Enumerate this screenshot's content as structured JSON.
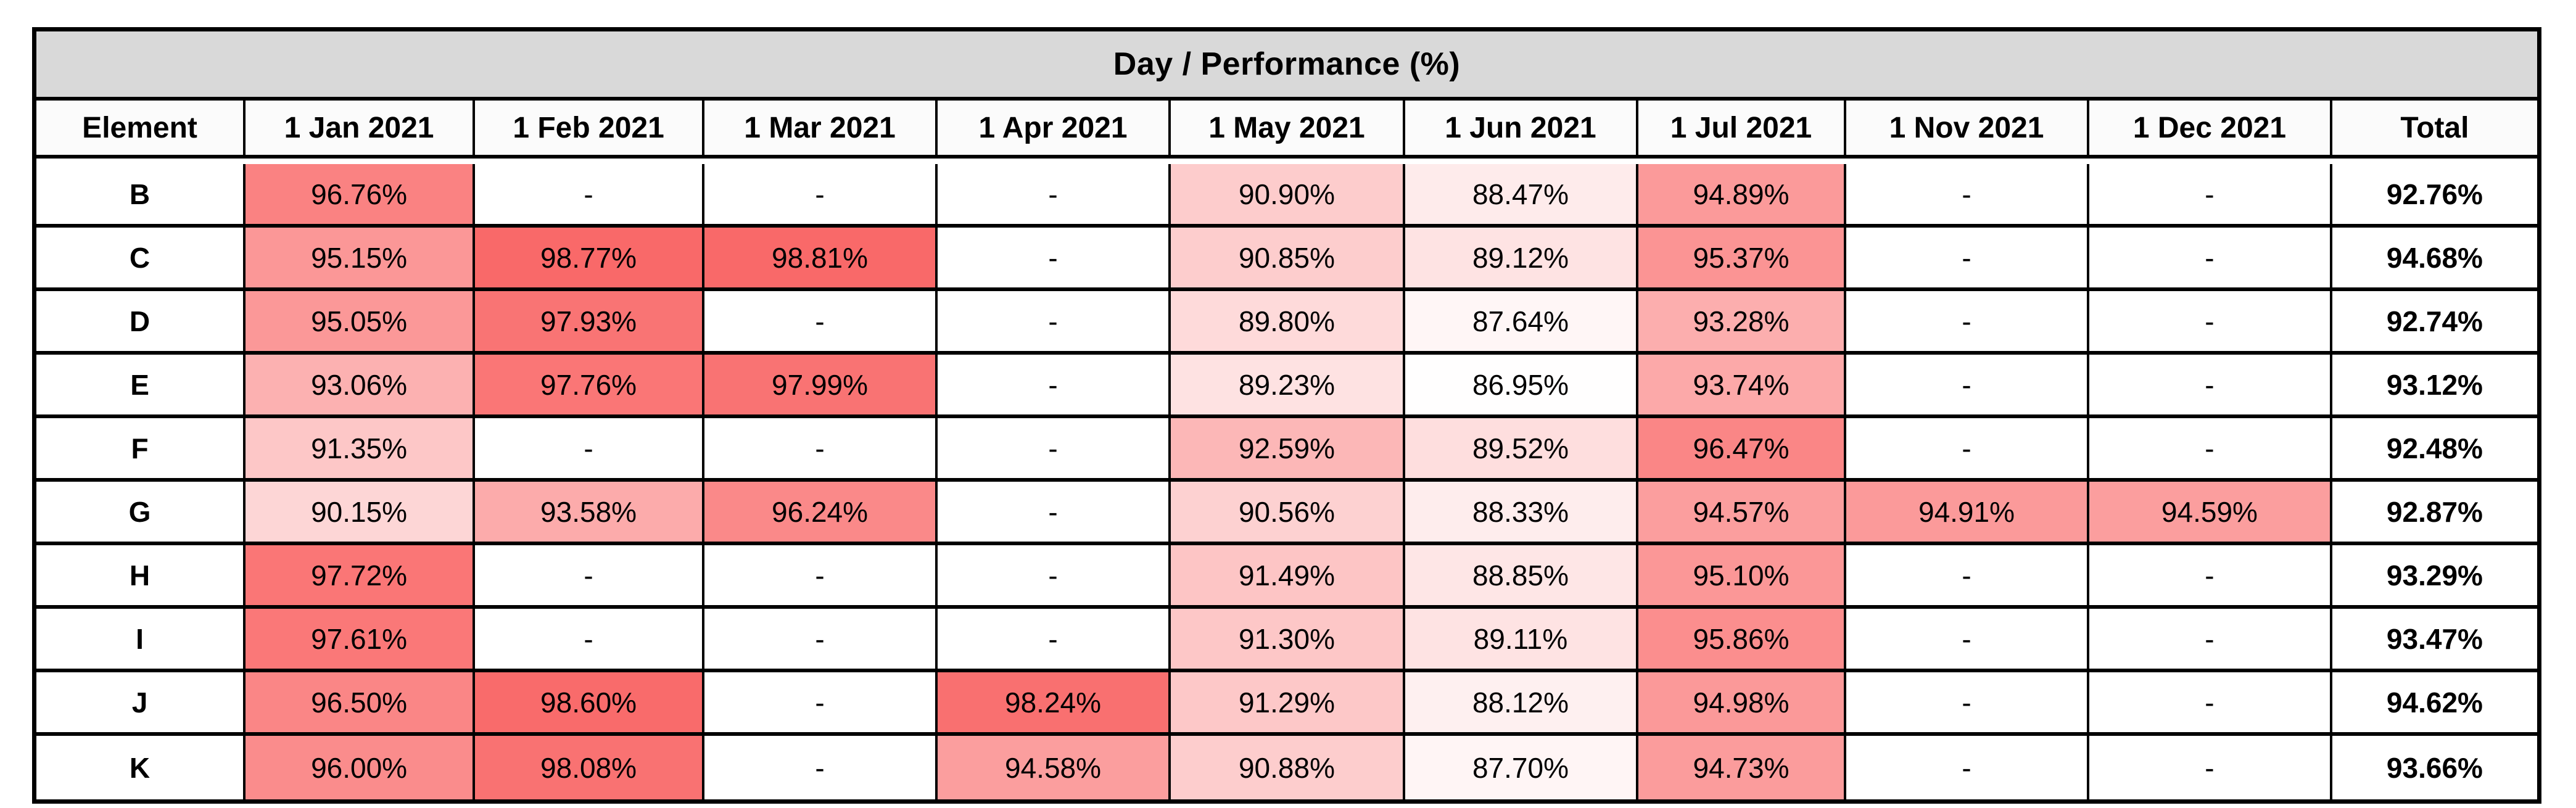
{
  "title": "Day / Performance (%)",
  "chart_data": {
    "type": "table",
    "title": "Day / Performance (%)",
    "columns": [
      "Element",
      "1 Jan 2021",
      "1 Feb 2021",
      "1 Mar 2021",
      "1 Apr 2021",
      "1 May 2021",
      "1 Jun 2021",
      "1 Jul 2021",
      "1 Nov 2021",
      "1 Dec 2021",
      "Total"
    ],
    "rows": [
      {
        "element": "B",
        "cells": [
          "96.76%",
          "-",
          "-",
          "-",
          "90.90%",
          "88.47%",
          "94.89%",
          "-",
          "-"
        ],
        "total": "92.76%"
      },
      {
        "element": "C",
        "cells": [
          "95.15%",
          "98.77%",
          "98.81%",
          "-",
          "90.85%",
          "89.12%",
          "95.37%",
          "-",
          "-"
        ],
        "total": "94.68%"
      },
      {
        "element": "D",
        "cells": [
          "95.05%",
          "97.93%",
          "-",
          "-",
          "89.80%",
          "87.64%",
          "93.28%",
          "-",
          "-"
        ],
        "total": "92.74%"
      },
      {
        "element": "E",
        "cells": [
          "93.06%",
          "97.76%",
          "97.99%",
          "-",
          "89.23%",
          "86.95%",
          "93.74%",
          "-",
          "-"
        ],
        "total": "93.12%"
      },
      {
        "element": "F",
        "cells": [
          "91.35%",
          "-",
          "-",
          "-",
          "92.59%",
          "89.52%",
          "96.47%",
          "-",
          "-"
        ],
        "total": "92.48%"
      },
      {
        "element": "G",
        "cells": [
          "90.15%",
          "93.58%",
          "96.24%",
          "-",
          "90.56%",
          "88.33%",
          "94.57%",
          "94.91%",
          "94.59%"
        ],
        "total": "92.87%"
      },
      {
        "element": "H",
        "cells": [
          "97.72%",
          "-",
          "-",
          "-",
          "91.49%",
          "88.85%",
          "95.10%",
          "-",
          "-"
        ],
        "total": "93.29%"
      },
      {
        "element": "I",
        "cells": [
          "97.61%",
          "-",
          "-",
          "-",
          "91.30%",
          "89.11%",
          "95.86%",
          "-",
          "-"
        ],
        "total": "93.47%"
      },
      {
        "element": "J",
        "cells": [
          "96.50%",
          "98.60%",
          "-",
          "98.24%",
          "91.29%",
          "88.12%",
          "94.98%",
          "-",
          "-"
        ],
        "total": "94.62%"
      },
      {
        "element": "K",
        "cells": [
          "96.00%",
          "98.08%",
          "-",
          "94.58%",
          "90.88%",
          "87.70%",
          "94.73%",
          "-",
          "-"
        ],
        "total": "93.66%"
      }
    ],
    "heatmap": {
      "applies_to": "date columns only",
      "min_value": 86.9,
      "max_value": 98.85,
      "min_color": "#FFFFFF",
      "max_color": "#F96868"
    },
    "layout_hints": {
      "grid": "on",
      "title_position": "top merged row",
      "value_range": [
        86.95,
        98.81
      ]
    }
  },
  "colors": {
    "title_bg": "#D9D9D9",
    "header_bg": "#FBFBFB",
    "grid_border": "#000000",
    "text": "#000000"
  }
}
